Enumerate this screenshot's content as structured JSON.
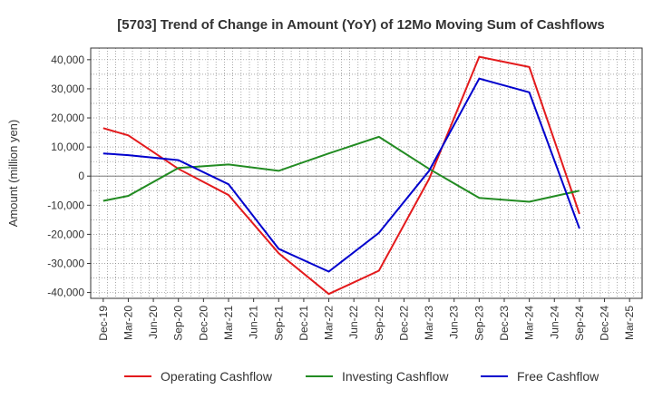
{
  "chart_data": {
    "type": "line",
    "title": "[5703]  Trend of Change in Amount (YoY) of 12Mo Moving Sum of Cashflows",
    "ylabel": "Amount (million yen)",
    "xlabel": "",
    "ylim": [
      -42000,
      44000
    ],
    "yticks": [
      40000,
      30000,
      20000,
      10000,
      0,
      -10000,
      -20000,
      -30000,
      -40000
    ],
    "ytick_labels": [
      "40,000",
      "30,000",
      "20,000",
      "10,000",
      "0",
      "-10,000",
      "-20,000",
      "-30,000",
      "-40,000"
    ],
    "categories": [
      "Dec-19",
      "Mar-20",
      "Jun-20",
      "Sep-20",
      "Dec-20",
      "Mar-21",
      "Jun-21",
      "Sep-21",
      "Dec-21",
      "Mar-22",
      "Jun-22",
      "Sep-22",
      "Dec-22",
      "Mar-23",
      "Jun-23",
      "Sep-23",
      "Dec-23",
      "Mar-24",
      "Jun-24",
      "Sep-24",
      "Dec-24",
      "Mar-25"
    ],
    "grid": true,
    "legend_position": "bottom",
    "series": [
      {
        "name": "Operating Cashflow",
        "color": "#e31a1c",
        "values": [
          16500,
          14000,
          null,
          2500,
          null,
          -6500,
          null,
          -26500,
          null,
          -40500,
          null,
          -32500,
          null,
          -1000,
          null,
          41000,
          null,
          37500,
          null,
          -13000,
          null,
          null
        ]
      },
      {
        "name": "Investing Cashflow",
        "color": "#228b22",
        "values": [
          -8500,
          -6800,
          null,
          2800,
          null,
          4000,
          null,
          1800,
          null,
          7800,
          null,
          13500,
          null,
          2500,
          null,
          -7500,
          null,
          -8800,
          null,
          -5000,
          null,
          null
        ]
      },
      {
        "name": "Free Cashflow",
        "color": "#0000cd",
        "values": [
          7800,
          7200,
          null,
          5500,
          null,
          -2800,
          null,
          -25000,
          null,
          -32800,
          null,
          -19500,
          null,
          1800,
          null,
          33500,
          null,
          28800,
          null,
          -18000,
          null,
          null
        ]
      }
    ]
  }
}
